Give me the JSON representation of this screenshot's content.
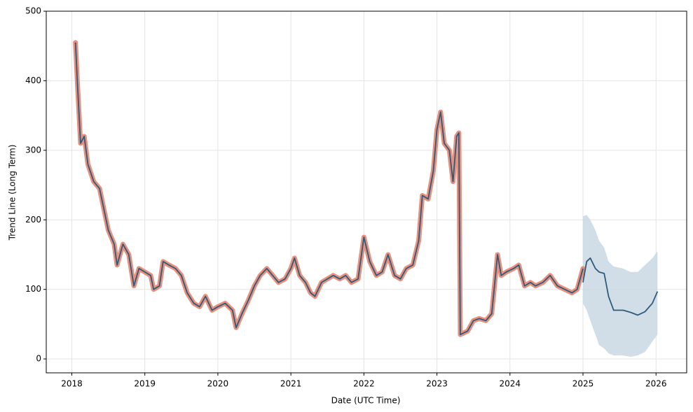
{
  "chart_data": {
    "type": "line",
    "xlabel": "Date (UTC Time)",
    "ylabel": "Trend Line (Long Term)",
    "xlim": [
      2017.65,
      2026.42
    ],
    "xticks": [
      2018,
      2019,
      2020,
      2021,
      2022,
      2023,
      2024,
      2025,
      2026
    ],
    "ylim": [
      -20,
      500
    ],
    "yticks": [
      0,
      100,
      200,
      300,
      400,
      500
    ],
    "grid": true,
    "series": [
      {
        "color": "#2c5b7c",
        "highlight": "#e8907e",
        "x": [
          2018.05,
          2018.08,
          2018.12,
          2018.17,
          2018.22,
          2018.3,
          2018.38,
          2018.45,
          2018.5,
          2018.58,
          2018.62,
          2018.7,
          2018.78,
          2018.85,
          2018.92,
          2019.0,
          2019.08,
          2019.12,
          2019.2,
          2019.25,
          2019.33,
          2019.42,
          2019.5,
          2019.58,
          2019.67,
          2019.75,
          2019.83,
          2019.92,
          2020.0,
          2020.1,
          2020.2,
          2020.25,
          2020.33,
          2020.42,
          2020.5,
          2020.58,
          2020.67,
          2020.75,
          2020.83,
          2020.92,
          2021.0,
          2021.05,
          2021.12,
          2021.2,
          2021.27,
          2021.33,
          2021.42,
          2021.5,
          2021.58,
          2021.67,
          2021.75,
          2021.83,
          2021.92,
          2022.0,
          2022.08,
          2022.17,
          2022.25,
          2022.33,
          2022.42,
          2022.5,
          2022.58,
          2022.67,
          2022.75,
          2022.8,
          2022.88,
          2022.95,
          2023.0,
          2023.05,
          2023.1,
          2023.17,
          2023.22,
          2023.27,
          2023.3,
          2023.32,
          2023.42,
          2023.5,
          2023.58,
          2023.67,
          2023.75,
          2023.83,
          2023.88,
          2023.95,
          2024.05,
          2024.12,
          2024.2,
          2024.28,
          2024.35,
          2024.45,
          2024.55,
          2024.65,
          2024.75,
          2024.85,
          2024.92,
          2025.0
        ],
        "values": [
          455,
          390,
          310,
          320,
          280,
          255,
          245,
          210,
          185,
          165,
          135,
          165,
          150,
          105,
          130,
          125,
          120,
          100,
          105,
          140,
          135,
          130,
          120,
          95,
          80,
          75,
          90,
          70,
          75,
          80,
          70,
          45,
          65,
          85,
          105,
          120,
          130,
          120,
          110,
          115,
          130,
          145,
          120,
          110,
          95,
          90,
          110,
          115,
          120,
          115,
          120,
          110,
          115,
          175,
          140,
          120,
          125,
          150,
          120,
          115,
          130,
          135,
          170,
          235,
          230,
          270,
          330,
          355,
          310,
          300,
          255,
          320,
          325,
          35,
          40,
          55,
          58,
          55,
          65,
          150,
          120,
          125,
          130,
          135,
          105,
          110,
          105,
          110,
          120,
          105,
          100,
          95,
          100,
          130
        ]
      },
      {
        "color": "#2c5b7c",
        "x": [
          2025.0,
          2025.05,
          2025.1,
          2025.17,
          2025.22,
          2025.29,
          2025.35,
          2025.42,
          2025.55,
          2025.65,
          2025.75,
          2025.85,
          2025.95,
          2026.02
        ],
        "values": [
          110,
          140,
          145,
          130,
          125,
          123,
          90,
          70,
          70,
          67,
          63,
          68,
          80,
          97
        ]
      }
    ],
    "band": {
      "color": "#c9d8e3",
      "x": [
        2025.0,
        2025.05,
        2025.1,
        2025.17,
        2025.22,
        2025.29,
        2025.35,
        2025.42,
        2025.55,
        2025.65,
        2025.75,
        2025.85,
        2025.95,
        2026.02
      ],
      "upper": [
        205,
        207,
        200,
        185,
        170,
        160,
        140,
        133,
        130,
        125,
        125,
        135,
        145,
        155
      ],
      "lower": [
        80,
        70,
        55,
        35,
        20,
        15,
        8,
        5,
        5,
        3,
        5,
        10,
        25,
        35
      ]
    }
  }
}
